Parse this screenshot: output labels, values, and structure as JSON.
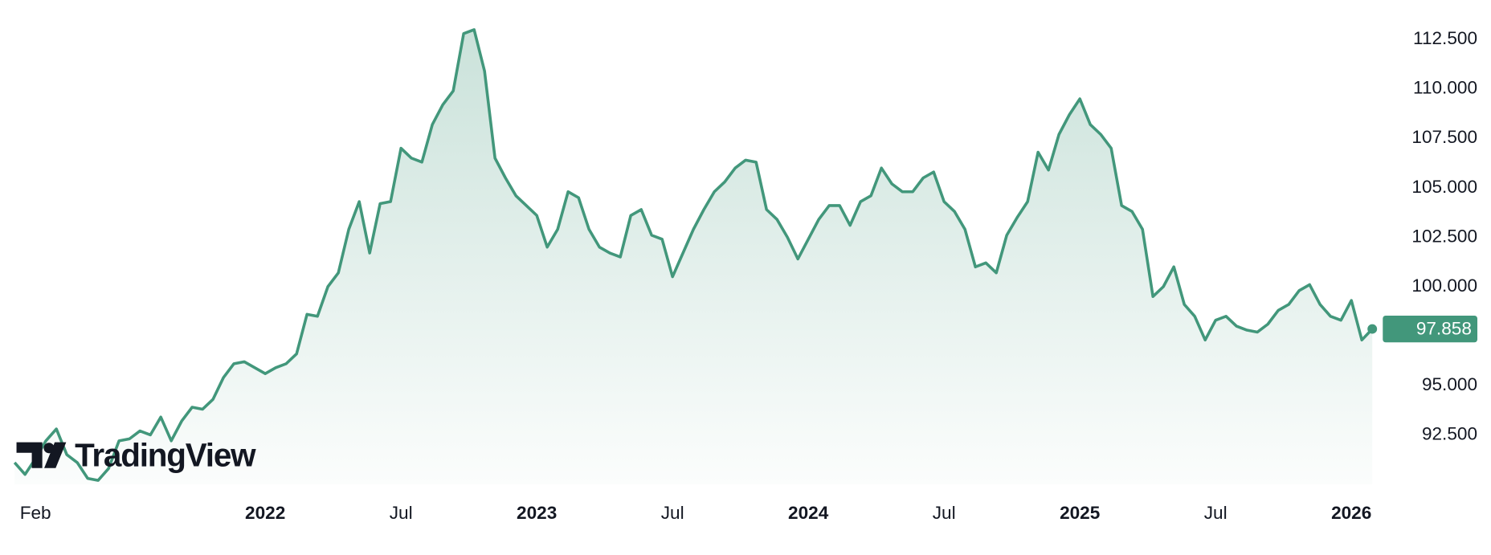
{
  "chart_data": {
    "type": "area",
    "watermark": "TradingView",
    "color": "#42977b",
    "categories": [
      null,
      null,
      "Feb",
      null,
      null,
      null,
      null,
      null,
      null,
      null,
      null,
      null,
      null,
      null,
      null,
      null,
      null,
      null,
      null,
      null,
      null,
      null,
      null,
      null,
      "2022",
      null,
      null,
      null,
      null,
      null,
      null,
      null,
      null,
      null,
      null,
      null,
      null,
      "Jul",
      null,
      null,
      null,
      null,
      null,
      null,
      null,
      null,
      null,
      null,
      null,
      null,
      "2023",
      null,
      null,
      null,
      null,
      null,
      null,
      null,
      null,
      null,
      null,
      null,
      null,
      "Jul",
      null,
      null,
      null,
      null,
      null,
      null,
      null,
      null,
      null,
      null,
      null,
      null,
      "2024",
      null,
      null,
      null,
      null,
      null,
      null,
      null,
      null,
      null,
      null,
      null,
      null,
      "Jul",
      null,
      null,
      null,
      null,
      null,
      null,
      null,
      null,
      null,
      null,
      null,
      null,
      "2025",
      null,
      null,
      null,
      null,
      null,
      null,
      null,
      null,
      null,
      null,
      null,
      null,
      "Jul",
      null,
      null,
      null,
      null,
      null,
      null,
      null,
      null,
      null,
      null,
      null,
      null,
      "2026",
      null,
      null
    ],
    "values": [
      91.1,
      90.5,
      91.3,
      92.2,
      92.8,
      91.5,
      91.1,
      90.3,
      90.2,
      90.8,
      92.2,
      92.3,
      92.7,
      92.5,
      93.4,
      92.2,
      93.2,
      93.9,
      93.8,
      94.3,
      95.4,
      96.1,
      96.2,
      95.9,
      95.6,
      95.9,
      96.1,
      96.6,
      98.6,
      98.5,
      100.0,
      100.7,
      102.9,
      104.3,
      101.7,
      104.2,
      104.3,
      107.0,
      106.5,
      106.3,
      108.2,
      109.2,
      109.9,
      112.8,
      113.0,
      110.9,
      106.5,
      105.5,
      104.6,
      104.1,
      103.6,
      102.0,
      102.9,
      104.8,
      104.5,
      102.9,
      102.0,
      101.7,
      101.5,
      103.6,
      103.9,
      102.6,
      102.4,
      100.5,
      101.7,
      102.9,
      103.9,
      104.8,
      105.3,
      106.0,
      106.4,
      106.3,
      103.9,
      103.4,
      102.5,
      101.4,
      102.4,
      103.4,
      104.1,
      104.1,
      103.1,
      104.3,
      104.6,
      106.0,
      105.2,
      104.8,
      104.8,
      105.5,
      105.8,
      104.3,
      103.8,
      102.9,
      101.0,
      101.2,
      100.7,
      102.6,
      103.5,
      104.3,
      106.8,
      105.9,
      107.7,
      108.7,
      109.5,
      108.2,
      107.7,
      107.0,
      104.1,
      103.8,
      102.9,
      99.5,
      100.0,
      101.0,
      99.1,
      98.5,
      97.3,
      98.3,
      98.5,
      98.0,
      97.8,
      97.7,
      98.1,
      98.8,
      99.1,
      99.8,
      100.1,
      99.1,
      98.5,
      98.3,
      99.3,
      97.3,
      97.858
    ],
    "ylim": [
      90,
      114.5
    ],
    "yticks": [
      {
        "value": 92.5,
        "label": "92.500"
      },
      {
        "value": 95,
        "label": "95.000"
      },
      {
        "value": 100,
        "label": "100.000"
      },
      {
        "value": 102.5,
        "label": "102.500"
      },
      {
        "value": 105,
        "label": "105.000"
      },
      {
        "value": 107.5,
        "label": "107.500"
      },
      {
        "value": 110,
        "label": "110.000"
      },
      {
        "value": 112.5,
        "label": "112.500"
      }
    ]
  }
}
